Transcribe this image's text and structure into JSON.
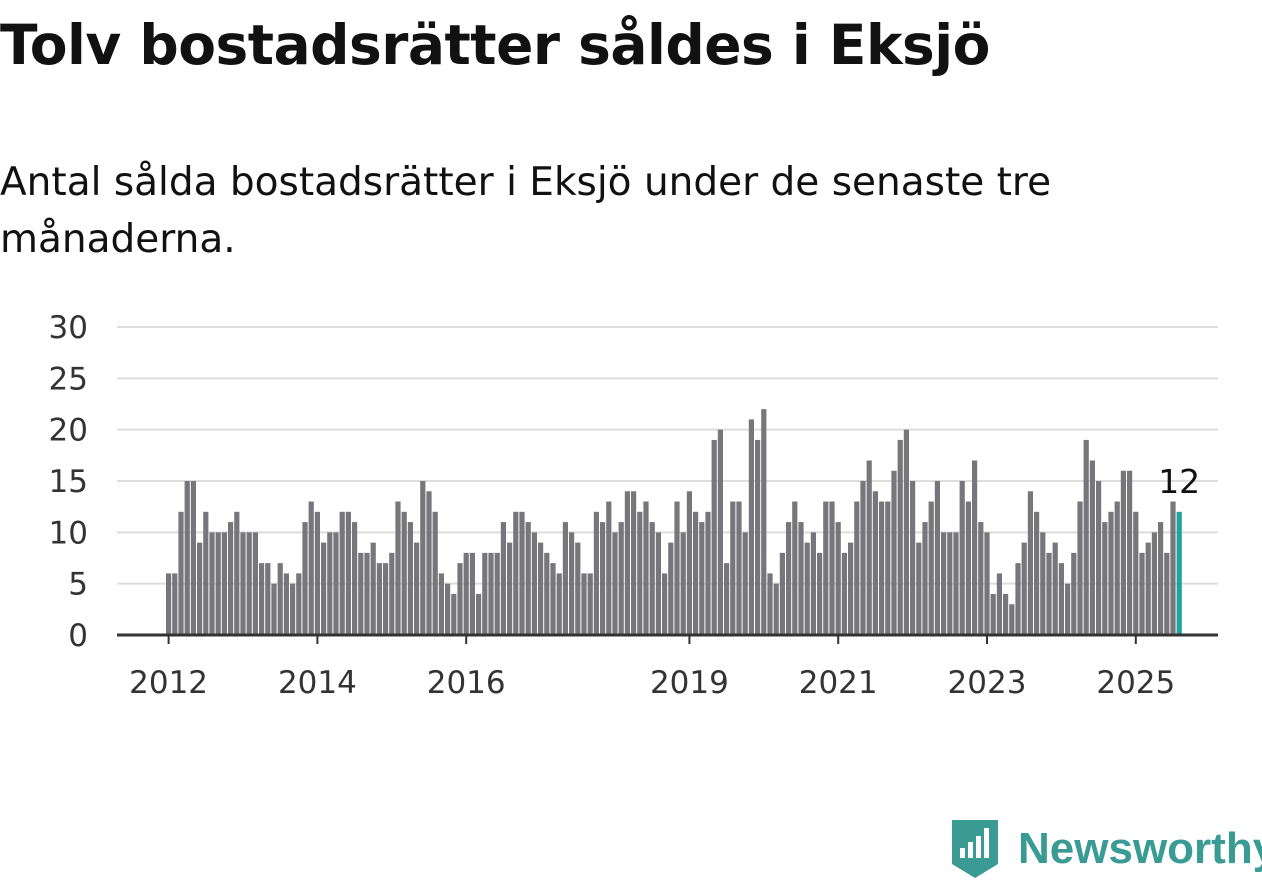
{
  "title": "Tolv bostadsrätter såldes i Eksjö",
  "subtitle": "Antal sålda bostadsrätter i Eksjö under de senaste tre månaderna.",
  "brand": {
    "name": "Newsworthy",
    "color": "#3a9a94",
    "icon": "newsworthy-logo-icon"
  },
  "colors": {
    "bar": "#77767b",
    "highlight": "#22a39a",
    "grid": "#dddddd",
    "axis": "#333333"
  },
  "chart_data": {
    "type": "bar",
    "title": "",
    "xlabel": "",
    "ylabel": "",
    "ylim": [
      0,
      30
    ],
    "yticks": [
      "0",
      "5",
      "10",
      "15",
      "20",
      "25",
      "30"
    ],
    "xticks": [
      {
        "label": "2012",
        "index": 0
      },
      {
        "label": "2014",
        "index": 24
      },
      {
        "label": "2016",
        "index": 48
      },
      {
        "label": "2019",
        "index": 84
      },
      {
        "label": "2021",
        "index": 108
      },
      {
        "label": "2023",
        "index": 132
      },
      {
        "label": "2025",
        "index": 156
      }
    ],
    "start_month": "2012-01",
    "values": [
      6,
      6,
      12,
      15,
      15,
      9,
      12,
      10,
      10,
      10,
      11,
      12,
      10,
      10,
      10,
      7,
      7,
      5,
      7,
      6,
      5,
      6,
      11,
      13,
      12,
      9,
      10,
      10,
      12,
      12,
      11,
      8,
      8,
      9,
      7,
      7,
      8,
      13,
      12,
      11,
      9,
      15,
      14,
      12,
      6,
      5,
      4,
      7,
      8,
      8,
      4,
      8,
      8,
      8,
      11,
      9,
      12,
      12,
      11,
      10,
      9,
      8,
      7,
      6,
      11,
      10,
      9,
      6,
      6,
      12,
      11,
      13,
      10,
      11,
      14,
      14,
      12,
      13,
      11,
      10,
      6,
      9,
      13,
      10,
      14,
      12,
      11,
      12,
      19,
      20,
      7,
      13,
      13,
      10,
      21,
      19,
      22,
      6,
      5,
      8,
      11,
      13,
      11,
      9,
      10,
      8,
      13,
      13,
      11,
      8,
      9,
      13,
      15,
      17,
      14,
      13,
      13,
      16,
      19,
      20,
      15,
      9,
      11,
      13,
      15,
      10,
      10,
      10,
      15,
      13,
      17,
      11,
      10,
      4,
      6,
      4,
      3,
      7,
      9,
      14,
      12,
      10,
      8,
      9,
      7,
      5,
      8,
      13,
      19,
      17,
      15,
      11,
      12,
      13,
      16,
      16,
      12,
      8,
      9,
      10,
      11,
      8,
      13,
      12
    ],
    "highlight_index": 163,
    "highlight_label": "12"
  }
}
